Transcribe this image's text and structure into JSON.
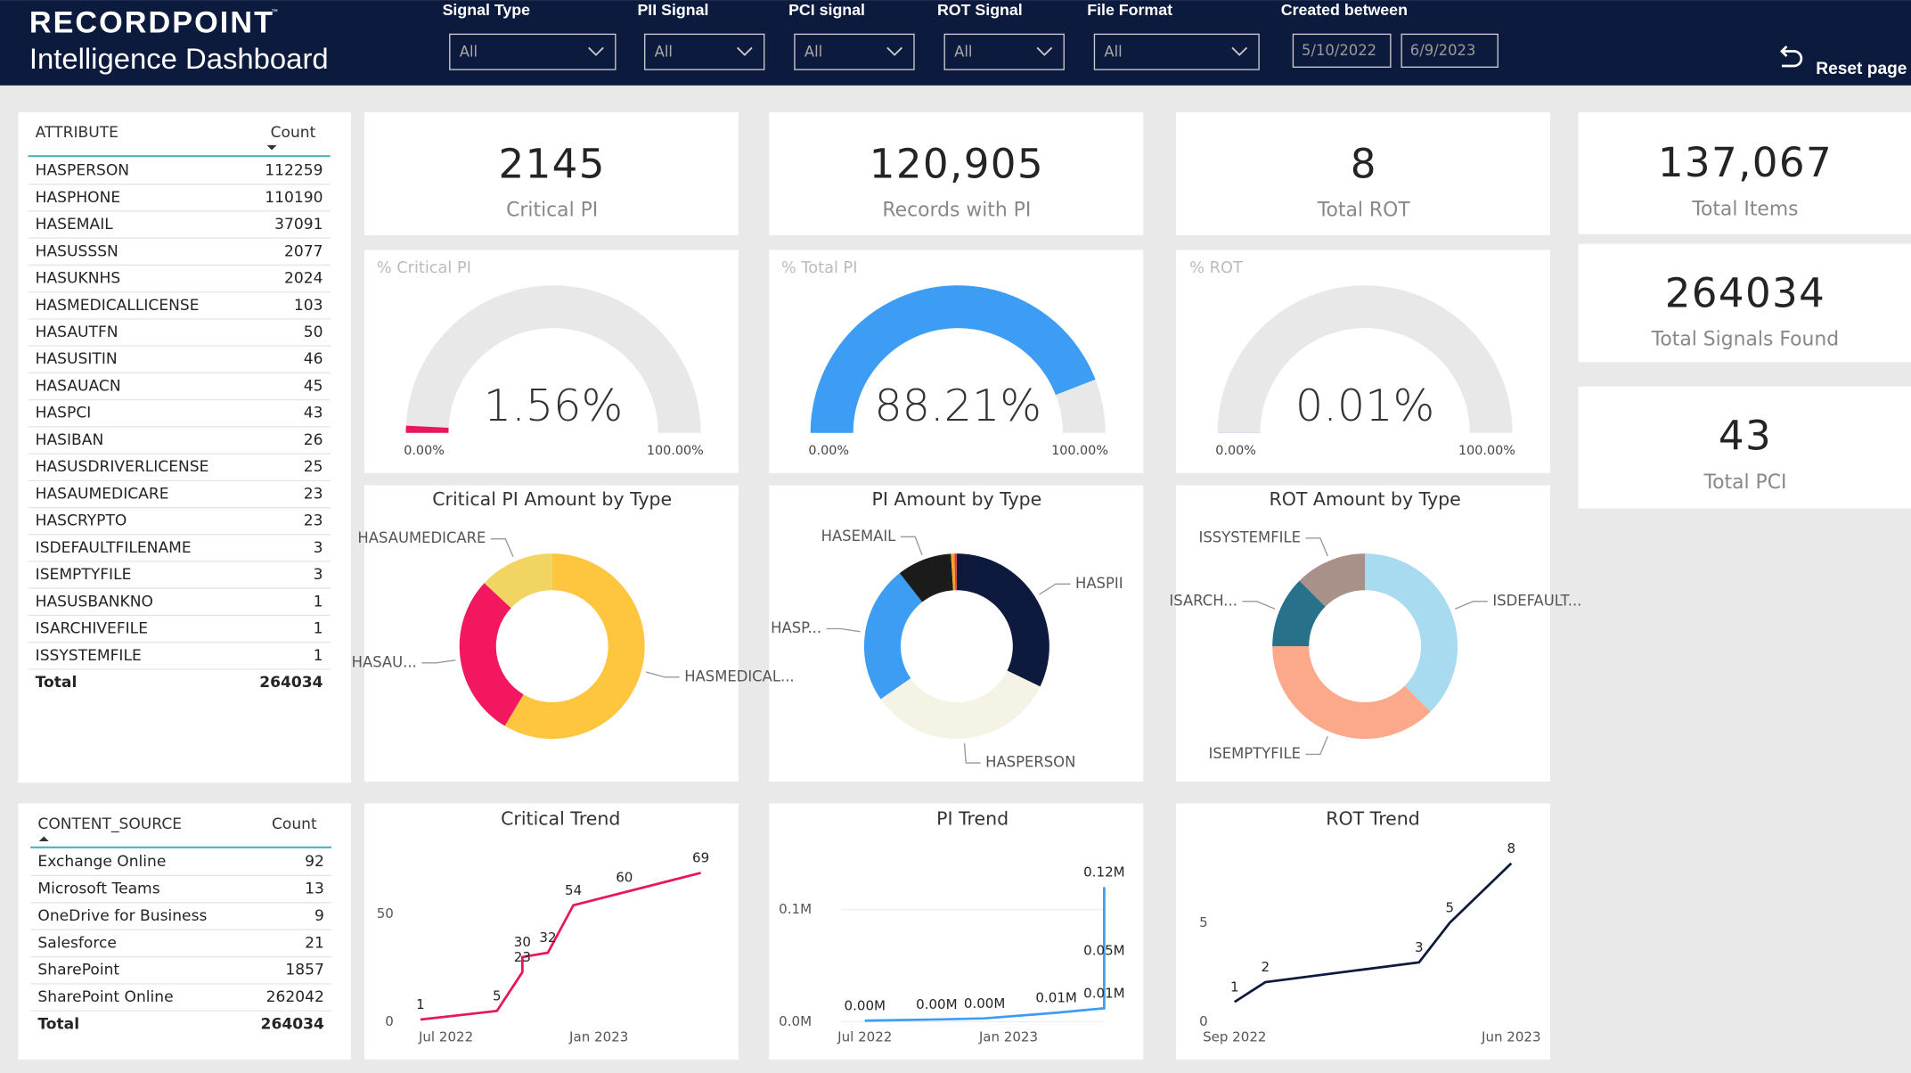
{
  "header": {
    "brand": "RECORDPOINT",
    "tm": "™",
    "subtitle": "Intelligence Dashboard",
    "reset": "Reset page"
  },
  "filters": [
    {
      "label": "Signal Type",
      "value": "All"
    },
    {
      "label": "PII Signal",
      "value": "All"
    },
    {
      "label": "PCI signal",
      "value": "All"
    },
    {
      "label": "ROT Signal",
      "value": "All"
    },
    {
      "label": "File Format",
      "value": "All"
    }
  ],
  "date_filter": {
    "label": "Created between",
    "from": "5/10/2022",
    "to": "6/9/2023"
  },
  "attribute_table": {
    "columns": [
      "ATTRIBUTE",
      "Count"
    ],
    "rows": [
      [
        "HASPERSON",
        112259
      ],
      [
        "HASPHONE",
        110190
      ],
      [
        "HASEMAIL",
        37091
      ],
      [
        "HASUSSSN",
        2077
      ],
      [
        "HASUKNHS",
        2024
      ],
      [
        "HASMEDICALLICENSE",
        103
      ],
      [
        "HASAUTFN",
        50
      ],
      [
        "HASUSITIN",
        46
      ],
      [
        "HASAUACN",
        45
      ],
      [
        "HASPCI",
        43
      ],
      [
        "HASIBAN",
        26
      ],
      [
        "HASUSDRIVERLICENSE",
        25
      ],
      [
        "HASAUMEDICARE",
        23
      ],
      [
        "HASCRYPTO",
        23
      ],
      [
        "ISDEFAULTFILENAME",
        3
      ],
      [
        "ISEMPTYFILE",
        3
      ],
      [
        "HASUSBANKNO",
        1
      ],
      [
        "ISARCHIVEFILE",
        1
      ],
      [
        "ISSYSTEMFILE",
        1
      ]
    ],
    "total": [
      "Total",
      264034
    ]
  },
  "source_table": {
    "columns": [
      "CONTENT_SOURCE",
      "Count"
    ],
    "rows": [
      [
        "Exchange Online",
        92
      ],
      [
        "Microsoft Teams",
        13
      ],
      [
        "OneDrive for Business",
        9
      ],
      [
        "Salesforce",
        21
      ],
      [
        "SharePoint",
        1857
      ],
      [
        "SharePoint Online",
        262042
      ]
    ],
    "total": [
      "Total",
      264034
    ]
  },
  "kpis": [
    {
      "value": 2145,
      "caption": "Critical PI"
    },
    {
      "value": 120905,
      "label": "120,905",
      "caption": "Records with PI"
    },
    {
      "value": 8,
      "caption": "Total ROT"
    },
    {
      "value": 137067,
      "label": "137,067",
      "caption": "Total Items"
    },
    {
      "value": 264034,
      "caption": "Total Signals Found"
    },
    {
      "value": 43,
      "caption": "Total PCI"
    }
  ],
  "gauges": [
    {
      "title": "% Critical PI",
      "value": 1.56,
      "value_label": "1.56%",
      "min": 0,
      "max": 100,
      "min_label": "0.00%",
      "max_label": "100.00%",
      "color": "#e8175d"
    },
    {
      "title": "% Total PI",
      "value": 88.21,
      "value_label": "88.21%",
      "min": 0,
      "max": 100,
      "min_label": "0.00%",
      "max_label": "100.00%",
      "color": "#3d9df5"
    },
    {
      "title": "% ROT",
      "value": 0.01,
      "value_label": "0.01%",
      "min": 0,
      "max": 100,
      "min_label": "0.00%",
      "max_label": "100.00%",
      "color": "#3d9df5"
    }
  ],
  "donuts": [
    {
      "title": "Critical PI Amount by Type",
      "categories": [
        "HASMEDICAL...",
        "HASAU...",
        "HASAUMEDICARE"
      ],
      "values": [
        103,
        50,
        23
      ],
      "colors": [
        "#fdc63e",
        "#f3175f",
        "#f2d463"
      ]
    },
    {
      "title": "PI Amount by Type",
      "categories": [
        "HASPII",
        "HASPERSON",
        "HASP...",
        "HASEMAIL",
        null,
        null
      ],
      "values": [
        32,
        33,
        24,
        9.5,
        0.6,
        0.4
      ],
      "colors": [
        "#0d1a3d",
        "#f4f3e6",
        "#3d9df3",
        "#1b1b1b",
        "#f6a623",
        "#e0393e"
      ]
    },
    {
      "title": "ROT Amount by Type",
      "categories": [
        "ISDEFAULT...",
        "ISEMPTYFILE",
        "ISARCH...",
        "ISSYSTEMFILE"
      ],
      "values": [
        3,
        3,
        1,
        1
      ],
      "colors": [
        "#a8dbef",
        "#fba98a",
        "#27718a",
        "#a99089"
      ]
    }
  ],
  "trends": [
    {
      "title": "Critical Trend",
      "color": "#e8175d",
      "x": [
        "2022-06",
        "2022-09",
        "2022-10",
        "2022-10",
        "2022-11",
        "2022-12",
        "2023-02",
        "2023-05"
      ],
      "values": [
        1,
        5,
        23,
        30,
        32,
        54,
        60,
        69
      ],
      "xlim": [
        "2022-06",
        "2023-05"
      ],
      "xticks": [
        {
          "value": "2022-07",
          "label": "Jul 2022"
        },
        {
          "value": "2023-01",
          "label": "Jan 2023"
        }
      ],
      "ylim": [
        0,
        78
      ],
      "yticks": [
        0,
        50
      ]
    },
    {
      "title": "PI Trend",
      "color": "#3d9df5",
      "x": [
        "2022-07",
        "2022-10",
        "2022-12",
        "2023-03",
        "2023-05",
        "2023-05",
        "2023-05"
      ],
      "values": [
        1000,
        2000,
        3000,
        8000,
        12000,
        50000,
        120000
      ],
      "value_labels": [
        "0.00M",
        "0.00M",
        "0.00M",
        "0.01M",
        "0.01M",
        "0.05M",
        "0.12M"
      ],
      "xlim": [
        "2022-06",
        "2023-05"
      ],
      "xticks": [
        {
          "value": "2022-07",
          "label": "Jul 2022"
        },
        {
          "value": "2023-01",
          "label": "Jan 2023"
        }
      ],
      "ylim": [
        0,
        150000
      ],
      "yticks": [
        {
          "value": 0,
          "label": "0.0M"
        },
        {
          "value": 100000,
          "label": "0.1M"
        }
      ]
    },
    {
      "title": "ROT Trend",
      "color": "#0d1a3d",
      "x": [
        "2022-09",
        "2022-10",
        "2023-03",
        "2023-04",
        "2023-06"
      ],
      "values": [
        1,
        2,
        3,
        5,
        8
      ],
      "xlim": [
        "2022-09",
        "2023-06"
      ],
      "xticks": [
        {
          "value": "2022-09",
          "label": "Sep 2022"
        },
        {
          "value": "2023-06",
          "label": "Jun 2023"
        }
      ],
      "ylim": [
        0,
        8.5
      ],
      "yticks": [
        0,
        5
      ]
    }
  ]
}
